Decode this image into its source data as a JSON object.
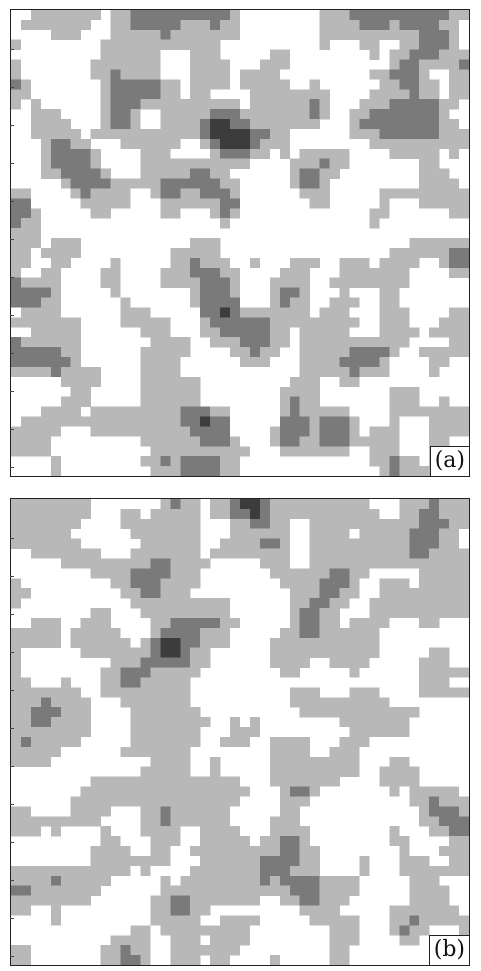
{
  "panels": [
    {
      "label": "(a)",
      "levels": 4,
      "colors": [
        "#ffffff",
        "#b8b8b8",
        "#7a7a7a",
        "#3c3c3c"
      ]
    },
    {
      "label": "(b)",
      "levels": 4,
      "colors": [
        "#ffffff",
        "#b8b8b8",
        "#7a7a7a",
        "#3c3c3c"
      ]
    }
  ]
}
